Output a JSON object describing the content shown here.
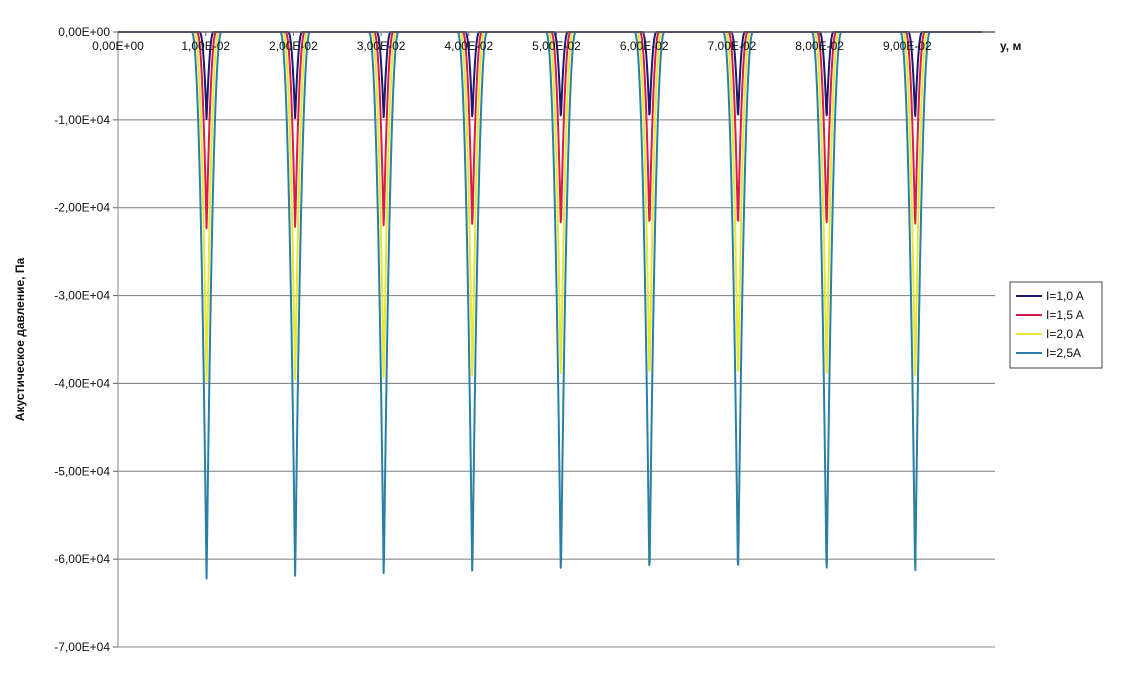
{
  "chart_data": {
    "type": "line",
    "title": "",
    "xlabel": "y, м",
    "ylabel": "Акустическое давление, Па",
    "xlim": [
      0,
      0.1
    ],
    "ylim": [
      -70000,
      0
    ],
    "x_ticks": [
      0,
      0.01,
      0.02,
      0.03,
      0.04,
      0.05,
      0.06,
      0.07,
      0.08,
      0.09
    ],
    "x_tick_labels": [
      "0,00E+00",
      "1,00E-02",
      "2,00E-02",
      "3,00E-02",
      "4,00E-02",
      "5,00E-02",
      "6,00E-02",
      "7,00E-02",
      "8,00E-02",
      "9,00E-02"
    ],
    "y_ticks": [
      0,
      -10000,
      -20000,
      -30000,
      -40000,
      -50000,
      -60000,
      -70000
    ],
    "y_tick_labels": [
      "0,00E+00",
      "-1,00E+04",
      "-2,00E+04",
      "-3,00E+04",
      "-4,00E+04",
      "-5,00E+04",
      "-6,00E+04",
      "-7,00E+04"
    ],
    "grid": true,
    "legend_position": "right",
    "trough_x": [
      0.0101,
      0.0202,
      0.0303,
      0.0404,
      0.0505,
      0.0606,
      0.0707,
      0.0808,
      0.0909
    ],
    "series": [
      {
        "name": "I=1,0 A",
        "color": "#1a1a6e",
        "trough_value": -10000,
        "half_width": 0.0008
      },
      {
        "name": "I=1,5 A",
        "color": "#d81b4a",
        "trough_value": -22500,
        "half_width": 0.0011
      },
      {
        "name": "I=2,0 A",
        "color": "#e8e830",
        "trough_value": -40000,
        "half_width": 0.0014
      },
      {
        "name": "I=2,5A",
        "color": "#2a7fa5",
        "trough_value": -62500,
        "half_width": 0.0017
      }
    ]
  }
}
